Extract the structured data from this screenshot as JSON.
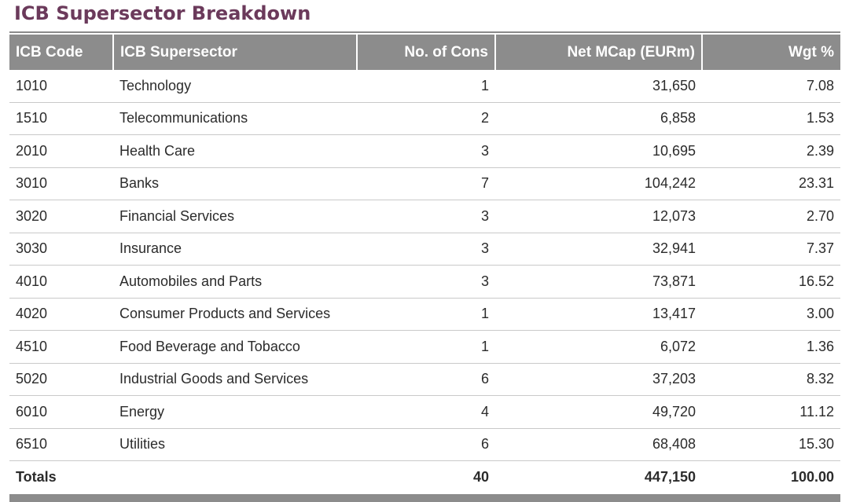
{
  "title": "ICB Supersector Breakdown",
  "colors": {
    "title": "#6b3a5b",
    "header_bg": "#8c8c8c",
    "header_text": "#ffffff",
    "row_divider": "#c9c9c9"
  },
  "table": {
    "columns": [
      "ICB Code",
      "ICB Supersector",
      "No. of Cons",
      "Net MCap (EURm)",
      "Wgt %"
    ],
    "rows": [
      [
        "1010",
        "Technology",
        "1",
        "31,650",
        "7.08"
      ],
      [
        "1510",
        "Telecommunications",
        "2",
        "6,858",
        "1.53"
      ],
      [
        "2010",
        "Health Care",
        "3",
        "10,695",
        "2.39"
      ],
      [
        "3010",
        "Banks",
        "7",
        "104,242",
        "23.31"
      ],
      [
        "3020",
        "Financial Services",
        "3",
        "12,073",
        "2.70"
      ],
      [
        "3030",
        "Insurance",
        "3",
        "32,941",
        "7.37"
      ],
      [
        "4010",
        "Automobiles and Parts",
        "3",
        "73,871",
        "16.52"
      ],
      [
        "4020",
        "Consumer Products and Services",
        "1",
        "13,417",
        "3.00"
      ],
      [
        "4510",
        "Food Beverage and Tobacco",
        "1",
        "6,072",
        "1.36"
      ],
      [
        "5020",
        "Industrial Goods and Services",
        "6",
        "37,203",
        "8.32"
      ],
      [
        "6010",
        "Energy",
        "4",
        "49,720",
        "11.12"
      ],
      [
        "6510",
        "Utilities",
        "6",
        "68,408",
        "15.30"
      ]
    ],
    "totals": {
      "label": "Totals",
      "cons": "40",
      "mcap": "447,150",
      "wgt": "100.00"
    }
  }
}
